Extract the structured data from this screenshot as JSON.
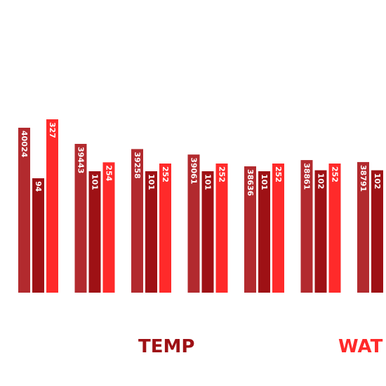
{
  "chart_data": {
    "type": "bar",
    "title": "",
    "xlabel": "",
    "ylabel": "",
    "categories": [
      "",
      "",
      "",
      "",
      "",
      "",
      ""
    ],
    "series": [
      {
        "name": "",
        "color": "#B22A2E",
        "values": [
          40024,
          39443,
          39258,
          39061,
          38636,
          38861,
          38791
        ],
        "labels": [
          "40024",
          "39443",
          "39258",
          "39061",
          "38636",
          "38861",
          "38791"
        ]
      },
      {
        "name": "TEMP",
        "color": "#9E1115",
        "values": [
          94,
          101,
          101,
          101,
          101,
          102,
          102
        ],
        "labels": [
          "94",
          "101",
          "101",
          "101",
          "101",
          "102",
          "102"
        ]
      },
      {
        "name": "WAT",
        "color": "#FF2A2A",
        "values": [
          327,
          254,
          252,
          252,
          252,
          252,
          null
        ],
        "labels": [
          "327",
          "254",
          "252",
          "252",
          "252",
          "252",
          ""
        ]
      }
    ],
    "legend": [
      {
        "label": "TEMP",
        "color": "#9E1115"
      },
      {
        "label": "WAT",
        "color": "#FF2A2A"
      }
    ],
    "grid": false,
    "legend_position": "bottom"
  }
}
